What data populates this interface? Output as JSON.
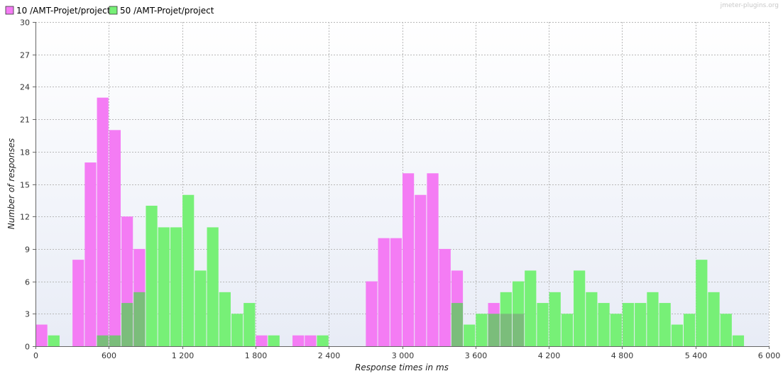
{
  "watermark": "jmeter-plugins.org",
  "colors": {
    "series_a": "#f47cf4",
    "series_b": "#77f077",
    "overlap": "#7bbd7b",
    "grid": "#b8b8b8",
    "bg_top": "#ffffff",
    "bg_bottom": "#e8ecf6"
  },
  "chart_data": {
    "type": "bar",
    "xlabel": "Response times in ms",
    "ylabel": "Number of responses",
    "xlim": [
      0,
      6000
    ],
    "ylim": [
      0,
      30
    ],
    "x_ticks": [
      0,
      600,
      1200,
      1800,
      2400,
      3000,
      3600,
      4200,
      4800,
      5400,
      6000
    ],
    "x_tick_labels": [
      "0",
      "600",
      "1 200",
      "1 800",
      "2 400",
      "3 000",
      "3 600",
      "4 200",
      "4 800",
      "5 400",
      "6 000"
    ],
    "y_ticks": [
      0,
      3,
      6,
      9,
      12,
      15,
      18,
      21,
      24,
      27,
      30
    ],
    "y_tick_labels": [
      "0",
      "3",
      "6",
      "9",
      "12",
      "15",
      "18",
      "21",
      "24",
      "27",
      "30"
    ],
    "bin_width": 100,
    "grid": true,
    "legend_position": "top-left",
    "series": [
      {
        "name": "10 /AMT-Projet/project",
        "x": [
          0,
          300,
          400,
          500,
          600,
          700,
          800,
          1800,
          2100,
          2200,
          2700,
          2800,
          2900,
          3000,
          3100,
          3200,
          3300,
          3400,
          3700,
          3800,
          3900
        ],
        "values": [
          2,
          8,
          17,
          23,
          20,
          12,
          9,
          1,
          1,
          1,
          6,
          10,
          10,
          16,
          14,
          16,
          9,
          7,
          4,
          3,
          3
        ]
      },
      {
        "name": "50 /AMT-Projet/project",
        "x": [
          100,
          500,
          600,
          700,
          800,
          900,
          1000,
          1100,
          1200,
          1300,
          1400,
          1500,
          1600,
          1700,
          1900,
          2300,
          3400,
          3500,
          3600,
          3700,
          3800,
          3900,
          4000,
          4100,
          4200,
          4300,
          4400,
          4500,
          4600,
          4700,
          4800,
          4900,
          5000,
          5100,
          5200,
          5300,
          5400,
          5500,
          5600,
          5700
        ],
        "values": [
          1,
          1,
          1,
          4,
          5,
          13,
          11,
          11,
          14,
          7,
          11,
          5,
          3,
          4,
          1,
          1,
          4,
          2,
          3,
          3,
          5,
          6,
          7,
          4,
          5,
          3,
          7,
          5,
          4,
          3,
          4,
          4,
          5,
          4,
          2,
          3,
          8,
          5,
          3,
          1
        ]
      }
    ]
  }
}
